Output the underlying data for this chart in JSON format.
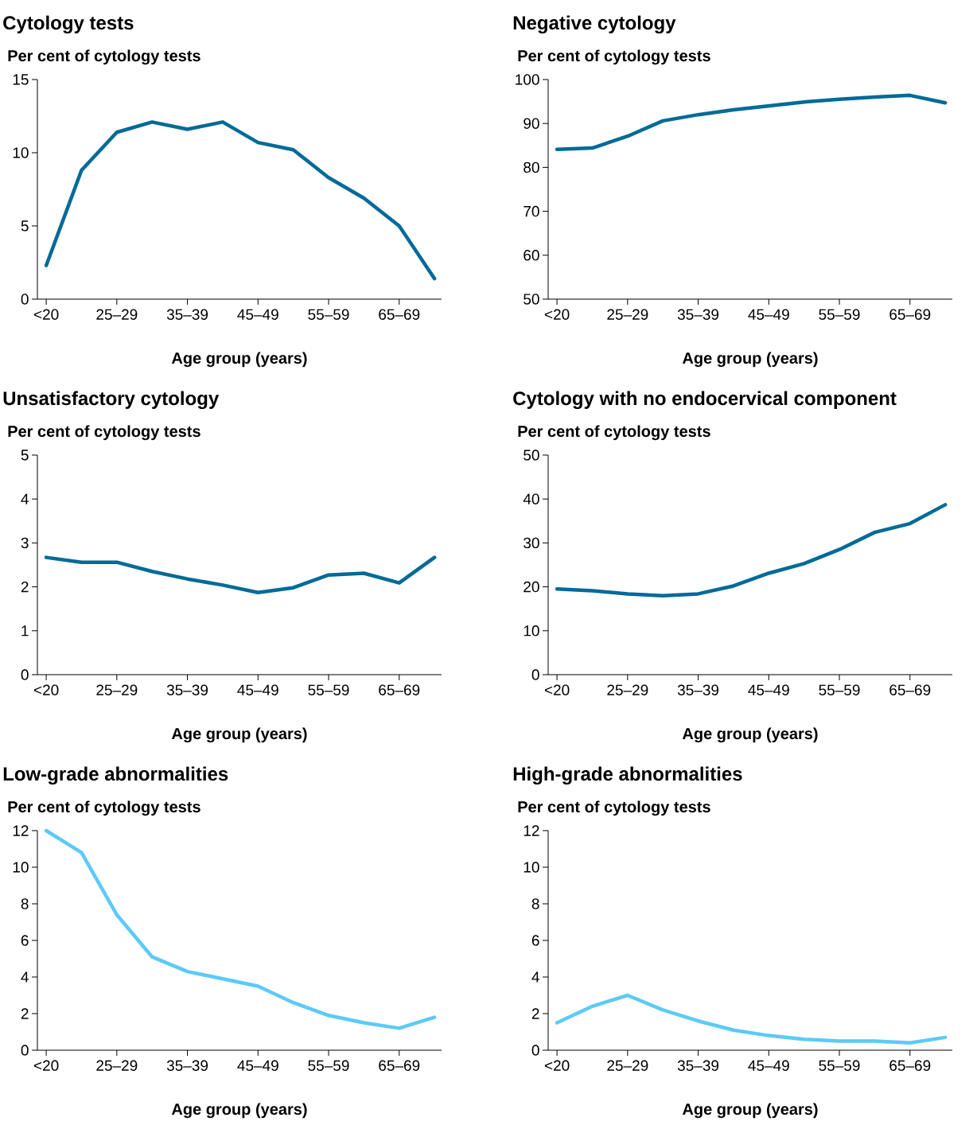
{
  "chart_data": [
    {
      "type": "line",
      "title": "Cytology tests",
      "ylabel": "Per cent of cytology tests",
      "xlabel": "Age group (years)",
      "categories": [
        "<20",
        null,
        "25–29",
        null,
        "35–39",
        null,
        "45–49",
        null,
        "55–59",
        null,
        "65–69",
        null
      ],
      "values": [
        2.3,
        8.8,
        11.4,
        12.1,
        11.6,
        12.1,
        10.7,
        10.2,
        8.3,
        6.9,
        5.0,
        1.4
      ],
      "color": "#006a98",
      "ylim": [
        0,
        15
      ],
      "yticks": [
        0,
        5,
        10,
        15
      ]
    },
    {
      "type": "line",
      "title": "Negative cytology",
      "ylabel": "Per cent of cytology tests",
      "xlabel": "Age group (years)",
      "categories": [
        "<20",
        null,
        "25–29",
        null,
        "35–39",
        null,
        "45–49",
        null,
        "55–59",
        null,
        "65–69",
        null
      ],
      "values": [
        84.1,
        84.4,
        87.1,
        90.6,
        92.0,
        93.1,
        94.0,
        94.9,
        95.5,
        96.0,
        96.4,
        94.7
      ],
      "color": "#006a98",
      "ylim": [
        50,
        100
      ],
      "yticks": [
        50,
        60,
        70,
        80,
        90,
        100
      ]
    },
    {
      "type": "line",
      "title": "Unsatisfactory cytology",
      "ylabel": "Per cent of cytology tests",
      "xlabel": "Age group (years)",
      "categories": [
        "<20",
        null,
        "25–29",
        null,
        "35–39",
        null,
        "45–49",
        null,
        "55–59",
        null,
        "65–69",
        null
      ],
      "values": [
        2.67,
        2.56,
        2.56,
        2.35,
        2.18,
        2.04,
        1.87,
        1.98,
        2.27,
        2.31,
        2.09,
        2.67
      ],
      "color": "#006a98",
      "ylim": [
        0,
        5
      ],
      "yticks": [
        0,
        1,
        2,
        3,
        4,
        5
      ]
    },
    {
      "type": "line",
      "title": "Cytology with no endocervical component",
      "ylabel": "Per cent of cytology tests",
      "xlabel": "Age group (years)",
      "categories": [
        "<20",
        null,
        "25–29",
        null,
        "35–39",
        null,
        "45–49",
        null,
        "55–59",
        null,
        "65–69",
        null
      ],
      "values": [
        19.5,
        19.1,
        18.4,
        18.0,
        18.4,
        20.2,
        23.1,
        25.3,
        28.5,
        32.4,
        34.4,
        38.7
      ],
      "color": "#006a98",
      "ylim": [
        0,
        50
      ],
      "yticks": [
        0,
        10,
        20,
        30,
        40,
        50
      ]
    },
    {
      "type": "line",
      "title": "Low-grade abnormalities",
      "ylabel": "Per cent of cytology tests",
      "xlabel": "Age group (years)",
      "categories": [
        "<20",
        null,
        "25–29",
        null,
        "35–39",
        null,
        "45–49",
        null,
        "55–59",
        null,
        "65–69",
        null
      ],
      "values": [
        12.0,
        10.8,
        7.4,
        5.1,
        4.3,
        3.9,
        3.5,
        2.6,
        1.9,
        1.5,
        1.2,
        1.8
      ],
      "color": "#5ccaf7",
      "ylim": [
        0,
        12
      ],
      "yticks": [
        0,
        2,
        4,
        6,
        8,
        10,
        12
      ]
    },
    {
      "type": "line",
      "title": "High-grade abnormalities",
      "ylabel": "Per cent of cytology tests",
      "xlabel": "Age group (years)",
      "categories": [
        "<20",
        null,
        "25–29",
        null,
        "35–39",
        null,
        "45–49",
        null,
        "55–59",
        null,
        "65–69",
        null
      ],
      "values": [
        1.5,
        2.4,
        3.0,
        2.2,
        1.6,
        1.1,
        0.8,
        0.6,
        0.5,
        0.5,
        0.4,
        0.7
      ],
      "color": "#5ccaf7",
      "ylim": [
        0,
        12
      ],
      "yticks": [
        0,
        2,
        4,
        6,
        8,
        10,
        12
      ]
    }
  ]
}
